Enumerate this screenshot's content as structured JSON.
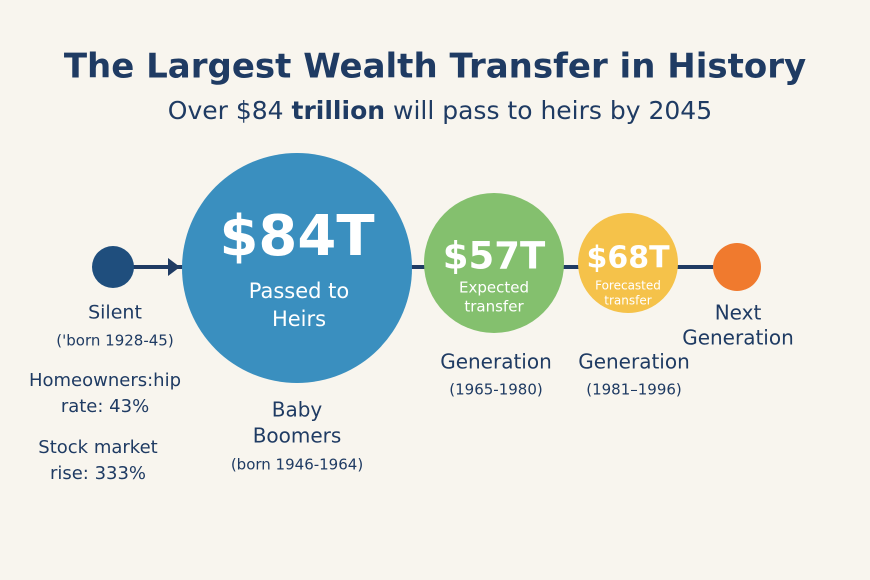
{
  "header": {
    "title": "The Largest Wealth Transfer in History",
    "subtitle": [
      "Over $84 ",
      "trillion",
      " will pass to heirs by 2045"
    ]
  },
  "nodes": [
    {
      "label": [
        "Silent"
      ],
      "years": "('born 1928-45)",
      "stats": [
        [
          "Homeowners:hip",
          "rate: 43%"
        ],
        [
          "Stock market",
          "rise: 333%"
        ]
      ]
    },
    {
      "amount": "$84T",
      "caption": [
        "Passed to",
        "Heirs"
      ],
      "label": [
        "Baby",
        "Boomers"
      ],
      "years": "(born 1946-1964)"
    },
    {
      "amount": "$57T",
      "caption": [
        "Expected",
        "transfer"
      ],
      "label": [
        "Generation"
      ],
      "years": "(1965-1980)"
    },
    {
      "amount": "$68T",
      "caption": [
        "Forecasted",
        "transfer"
      ],
      "label": [
        "Generation"
      ],
      "years": "(1981–1996)"
    },
    {
      "label": [
        "Next",
        "Generation"
      ]
    }
  ]
}
